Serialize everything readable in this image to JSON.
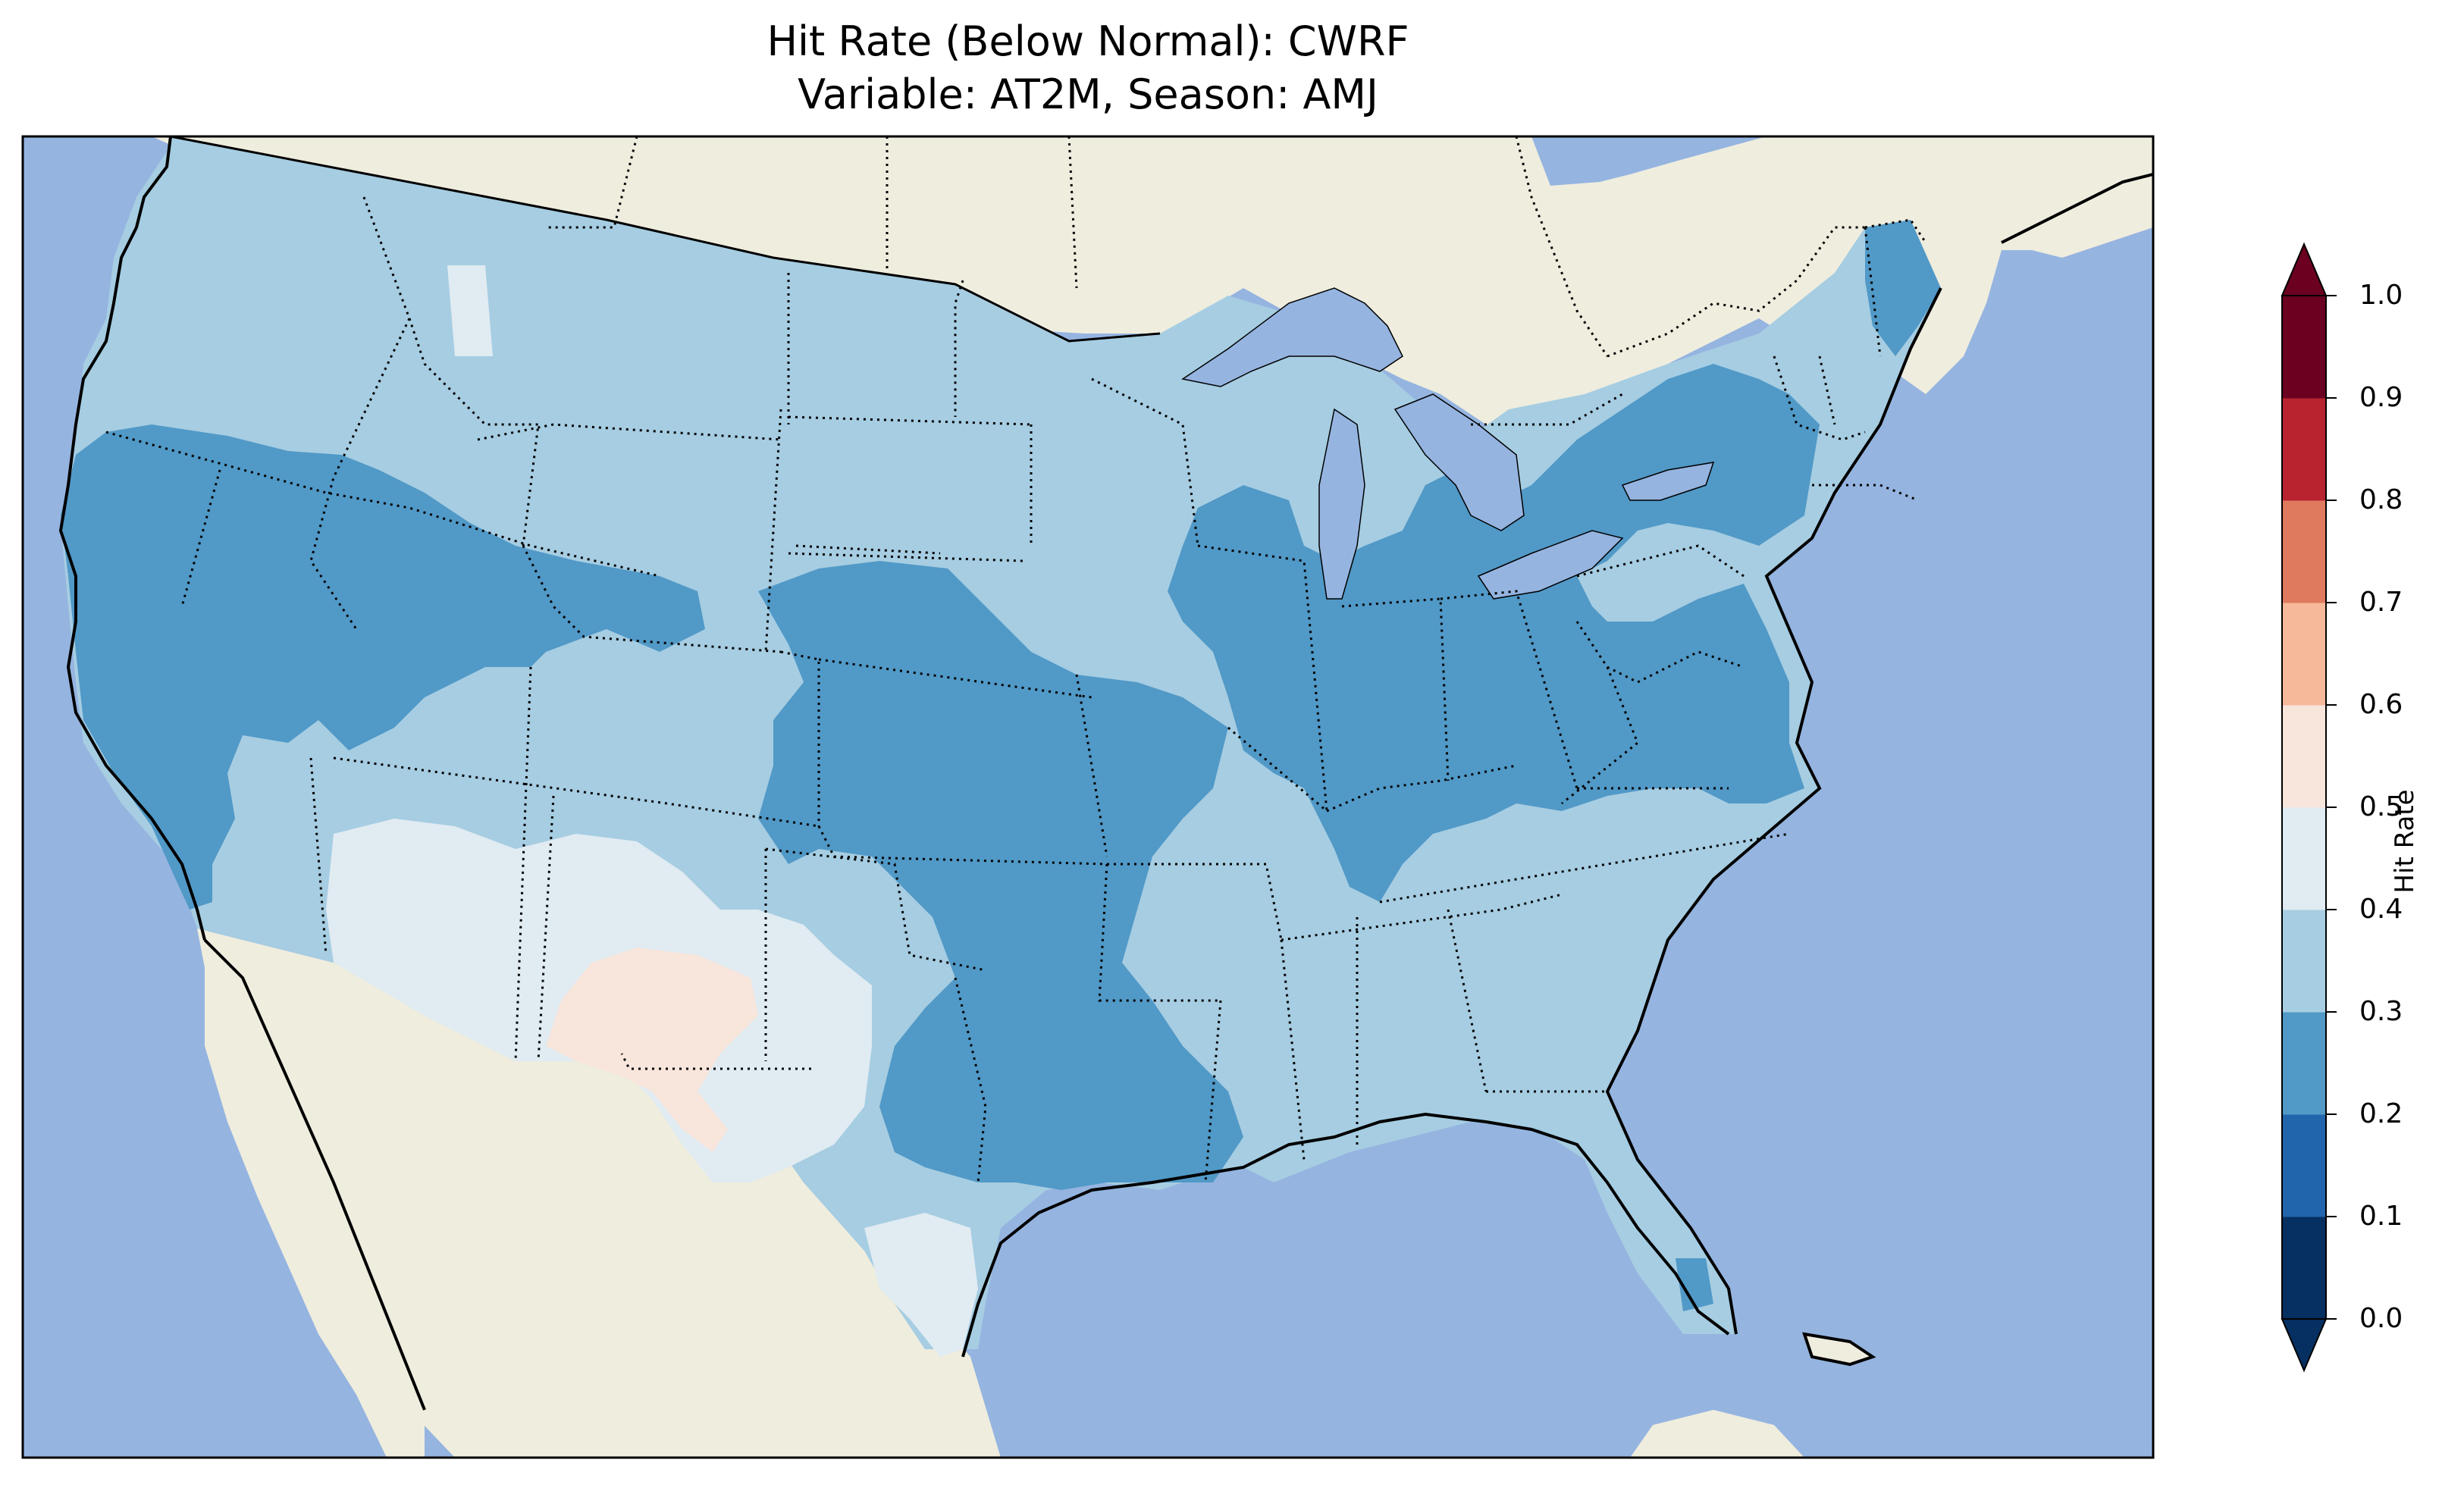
{
  "figure": {
    "title_line1": "Hit Rate (Below Normal): CWRF",
    "title_line2": "Variable: AT2M, Season: AMJ"
  },
  "map": {
    "region": "Contiguous United States",
    "ocean_color": "#95b4e0",
    "land_color": "#efedde",
    "hit_rate_regions": [
      {
        "region": "Pacific Northwest / northern Rockies",
        "level": "0.3-0.4"
      },
      {
        "region": "Northern Great Plains",
        "level": "0.3-0.4"
      },
      {
        "region": "California / Great Basin / central Rockies band",
        "level": "0.2-0.3"
      },
      {
        "region": "Midwest / Ohio Valley / Mid-Atlantic / New England",
        "level": "0.2-0.3"
      },
      {
        "region": "Kansas / Oklahoma / Louisiana",
        "level": "0.2-0.3"
      },
      {
        "region": "Southwest (Arizona / New Mexico / west Texas)",
        "level": "0.4-0.5"
      },
      {
        "region": "Southern New Mexico / far west Texas",
        "level": "0.5-0.6"
      },
      {
        "region": "Southeast / Gulf Coast / Florida",
        "level": "0.3-0.4"
      }
    ]
  },
  "colorbar": {
    "label": "Hit Rate",
    "ticks": [
      "0.0",
      "0.1",
      "0.2",
      "0.3",
      "0.4",
      "0.5",
      "0.6",
      "0.7",
      "0.8",
      "0.9",
      "1.0"
    ],
    "colors": [
      "#053061",
      "#2166ac",
      "#4393c3",
      "#92c5de",
      "#d1e5f0",
      "#f7f7f7",
      "#fddbc7",
      "#f4a582",
      "#d6604d",
      "#b2182b",
      "#67001f"
    ],
    "bins": [
      {
        "range": "0.0-0.1",
        "color": "#053061"
      },
      {
        "range": "0.1-0.2",
        "color": "#2166ac"
      },
      {
        "range": "0.2-0.3",
        "color": "#5199c7"
      },
      {
        "range": "0.3-0.4",
        "color": "#a6cde2"
      },
      {
        "range": "0.4-0.5",
        "color": "#e0ebf2"
      },
      {
        "range": "0.5-0.6",
        "color": "#f8e5dc"
      },
      {
        "range": "0.6-0.7",
        "color": "#f6b99a"
      },
      {
        "range": "0.7-0.8",
        "color": "#e07a5f"
      },
      {
        "range": "0.8-0.9",
        "color": "#b8232f"
      },
      {
        "range": "0.9-1.0",
        "color": "#6b0021"
      }
    ]
  }
}
